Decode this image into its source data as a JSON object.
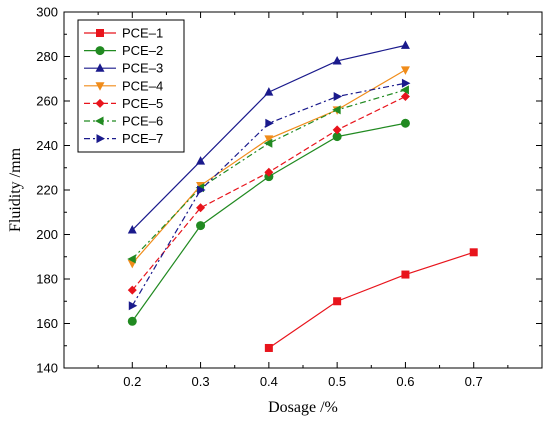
{
  "chart_data": {
    "type": "line",
    "title": "",
    "xlabel": "Dosage /%",
    "ylabel": "Fluidity /mm",
    "xlim": [
      0.1,
      0.8
    ],
    "ylim": [
      140,
      300
    ],
    "xticks": [
      0.2,
      0.3,
      0.4,
      0.5,
      0.6,
      0.7
    ],
    "yticks": [
      140,
      160,
      180,
      200,
      220,
      240,
      260,
      280,
      300
    ],
    "grid": false,
    "legend_position": "top-left",
    "series": [
      {
        "name": "PCE–1",
        "color": "#e8141c",
        "marker": "square",
        "dash": "",
        "x": [
          0.4,
          0.5,
          0.6,
          0.7
        ],
        "y": [
          149,
          170,
          182,
          192
        ]
      },
      {
        "name": "PCE–2",
        "color": "#218a21",
        "marker": "circle",
        "dash": "",
        "x": [
          0.2,
          0.3,
          0.4,
          0.5,
          0.6
        ],
        "y": [
          161,
          204,
          226,
          244,
          250
        ]
      },
      {
        "name": "PCE–3",
        "color": "#1a1a8c",
        "marker": "triangle-up",
        "dash": "",
        "x": [
          0.2,
          0.3,
          0.4,
          0.5,
          0.6
        ],
        "y": [
          202,
          233,
          264,
          278,
          285
        ]
      },
      {
        "name": "PCE–4",
        "color": "#f08c1a",
        "marker": "triangle-down",
        "dash": "",
        "x": [
          0.2,
          0.3,
          0.4,
          0.5,
          0.6
        ],
        "y": [
          187,
          222,
          243,
          256,
          274
        ]
      },
      {
        "name": "PCE–5",
        "color": "#e8141c",
        "marker": "diamond",
        "dash": "6,3",
        "x": [
          0.2,
          0.3,
          0.4,
          0.5,
          0.6
        ],
        "y": [
          175,
          212,
          228,
          247,
          262
        ]
      },
      {
        "name": "PCE–6",
        "color": "#218a21",
        "marker": "triangle-left",
        "dash": "6,3,2,3",
        "x": [
          0.2,
          0.3,
          0.4,
          0.5,
          0.6
        ],
        "y": [
          189,
          221,
          241,
          256,
          265
        ]
      },
      {
        "name": "PCE–7",
        "color": "#1a1a8c",
        "marker": "triangle-right",
        "dash": "6,3,2,3",
        "x": [
          0.2,
          0.3,
          0.4,
          0.5,
          0.6
        ],
        "y": [
          168,
          220,
          250,
          262,
          268
        ]
      }
    ]
  }
}
